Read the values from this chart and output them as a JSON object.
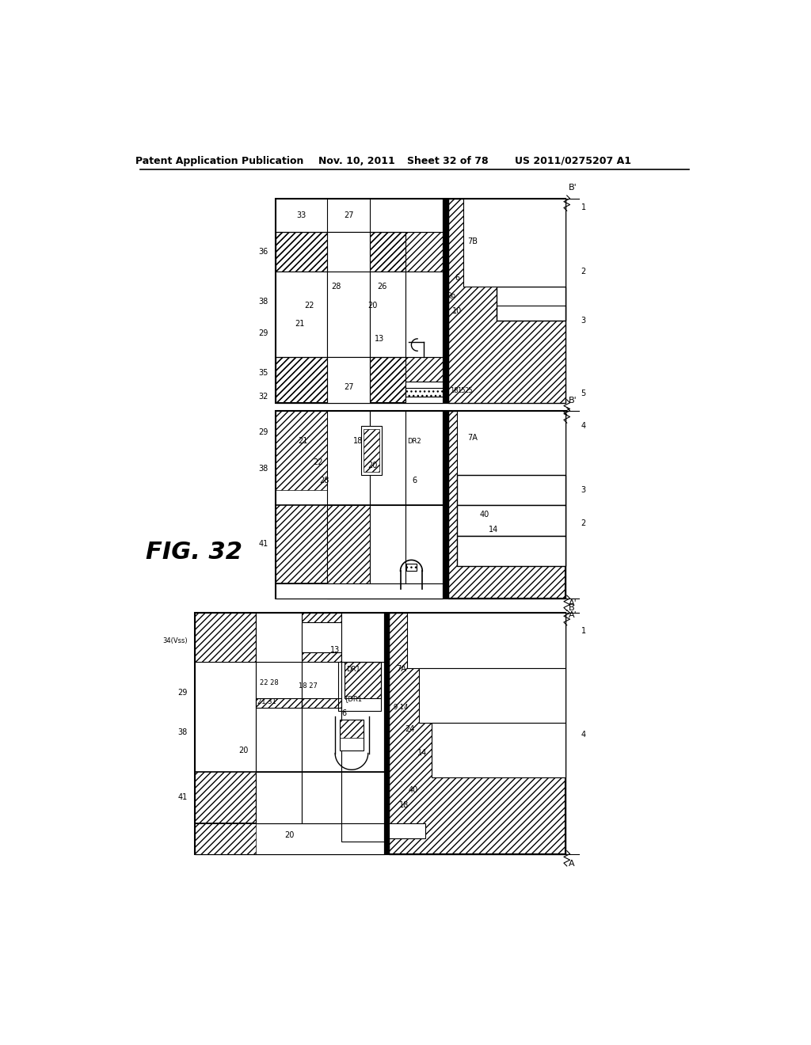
{
  "bg_color": "#ffffff",
  "header_text": "Patent Application Publication",
  "header_date": "Nov. 10, 2011",
  "header_sheet": "Sheet 32 of 78",
  "header_patent": "US 2011/0275207 A1",
  "fig_label": "FIG. 32"
}
